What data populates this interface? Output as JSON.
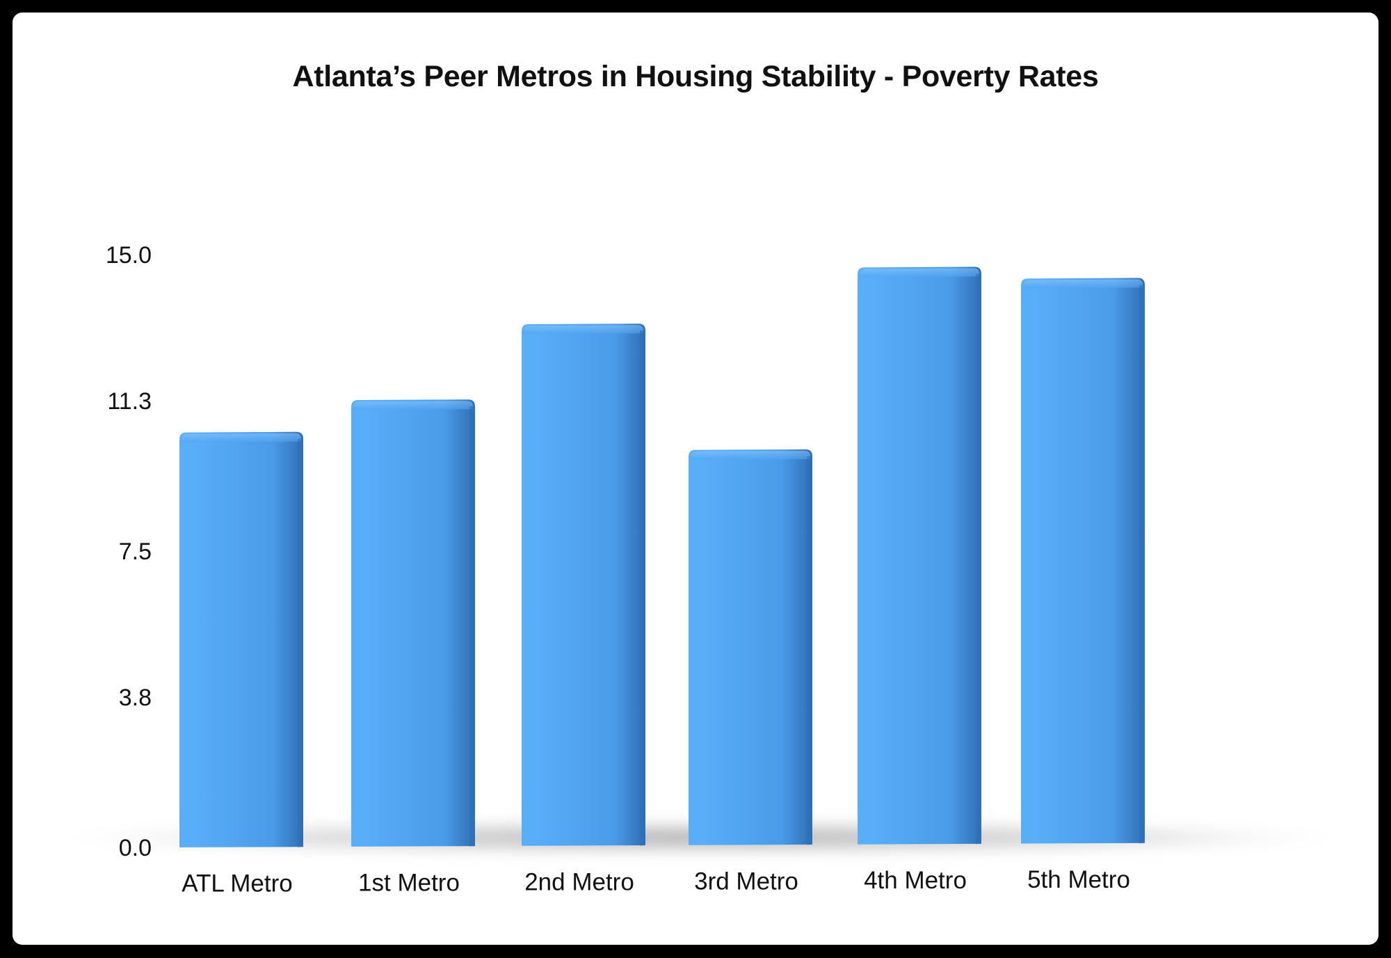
{
  "chart_data": {
    "type": "bar",
    "title": "Atlanta’s Peer Metros in Housing Stability - Poverty Rates",
    "xlabel": "",
    "ylabel": "",
    "categories": [
      "ATL Metro",
      "1st Metro",
      "2nd Metro",
      "3rd Metro",
      "4th Metro",
      "5th Metro"
    ],
    "values": [
      10.5,
      11.3,
      13.2,
      10.0,
      14.6,
      14.3
    ],
    "yticks": [
      "0.0",
      "3.8",
      "7.5",
      "11.3",
      "15.0"
    ],
    "ylim": [
      0,
      15
    ],
    "grid": false,
    "legend": "none",
    "colors": {
      "bar_light": "#59aef8",
      "bar_mid": "#4a9be8",
      "bar_dark": "#2f6fb5",
      "shadow": "#bdbdbd"
    }
  }
}
